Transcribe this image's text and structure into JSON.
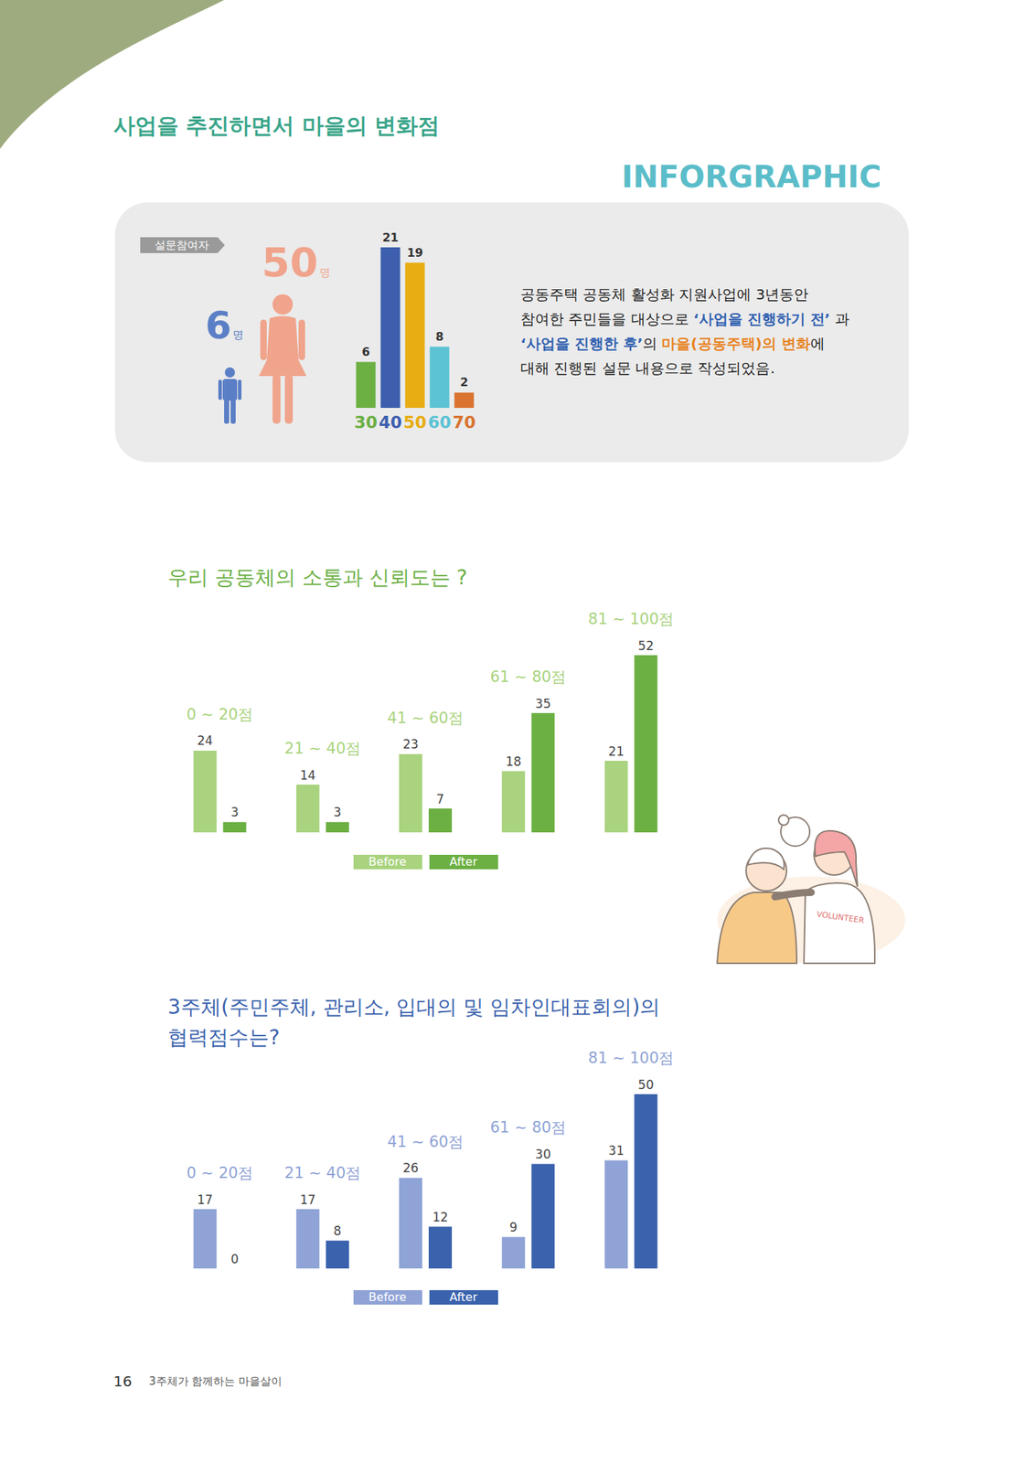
{
  "header": {
    "title": "사업을 추진하면서 마을의 변화점",
    "tag": "INFORGRAPHIC"
  },
  "participants": {
    "label": "설문참여자",
    "groups": [
      {
        "count": 6,
        "unit": "명",
        "color": "#5b7fc6"
      },
      {
        "count": 50,
        "unit": "명",
        "color": "#f0a48c"
      }
    ]
  },
  "description": [
    {
      "text": "공동주택 공동체 활성화 지원사업에 3년동안 참여한 주민들을 대상으로 "
    },
    {
      "text": "‘사업을 진행하기 전’",
      "color": "#2f5fb0"
    },
    {
      "text": " 과 "
    },
    {
      "text": "‘사업을 진행한 후’",
      "color": "#2f5fb0"
    },
    {
      "text": "의 "
    },
    {
      "text": "마을(공동주택)의 변화",
      "color": "#e8821e"
    },
    {
      "text": "에 대해 진행된 설문 내용으로 작성되었음."
    }
  ],
  "chart_data": [
    {
      "type": "bar",
      "categories": [
        "30",
        "40",
        "50",
        "60",
        "70"
      ],
      "values": [
        6,
        21,
        19,
        8,
        2
      ],
      "colors": [
        "#6cb043",
        "#3d5fae",
        "#e8ad13",
        "#5bc3d4",
        "#d9732f"
      ],
      "ylim": [
        0,
        21
      ],
      "data_labels": true,
      "tick_labels": "x"
    },
    {
      "type": "bar",
      "title": "우리 공동체의 소통과 신뢰도는 ?",
      "categories": [
        "0 ~ 20점",
        "21 ~ 40점",
        "41 ~ 60점",
        "61 ~ 80점",
        "81 ~ 100점"
      ],
      "series": [
        {
          "name": "Before",
          "color": "#a9d37e",
          "values": [
            24,
            14,
            23,
            18,
            21
          ]
        },
        {
          "name": "After",
          "color": "#6cb043",
          "values": [
            3,
            3,
            7,
            35,
            52
          ]
        }
      ],
      "ylim": [
        0,
        52
      ],
      "data_labels": true,
      "tick_labels": false,
      "legend": "bottom"
    },
    {
      "type": "bar",
      "title": "3주체(주민주체, 관리소, 입대의 및 임차인대표회의)의 협력점수는?",
      "categories": [
        "0 ~ 20점",
        "21 ~ 40점",
        "41 ~ 60점",
        "61 ~ 80점",
        "81 ~ 100점"
      ],
      "series": [
        {
          "name": "Before",
          "color": "#8fa3d6",
          "values": [
            17,
            17,
            26,
            9,
            31
          ]
        },
        {
          "name": "After",
          "color": "#3a62ad",
          "values": [
            0,
            8,
            12,
            30,
            50
          ]
        }
      ],
      "ylim": [
        0,
        50
      ],
      "data_labels": true,
      "tick_labels": false,
      "legend": "bottom"
    }
  ],
  "illustration": {
    "text": "VOLUNTEER"
  },
  "footer": {
    "page": 16,
    "text": "3주체가 함께하는 마을살이"
  }
}
